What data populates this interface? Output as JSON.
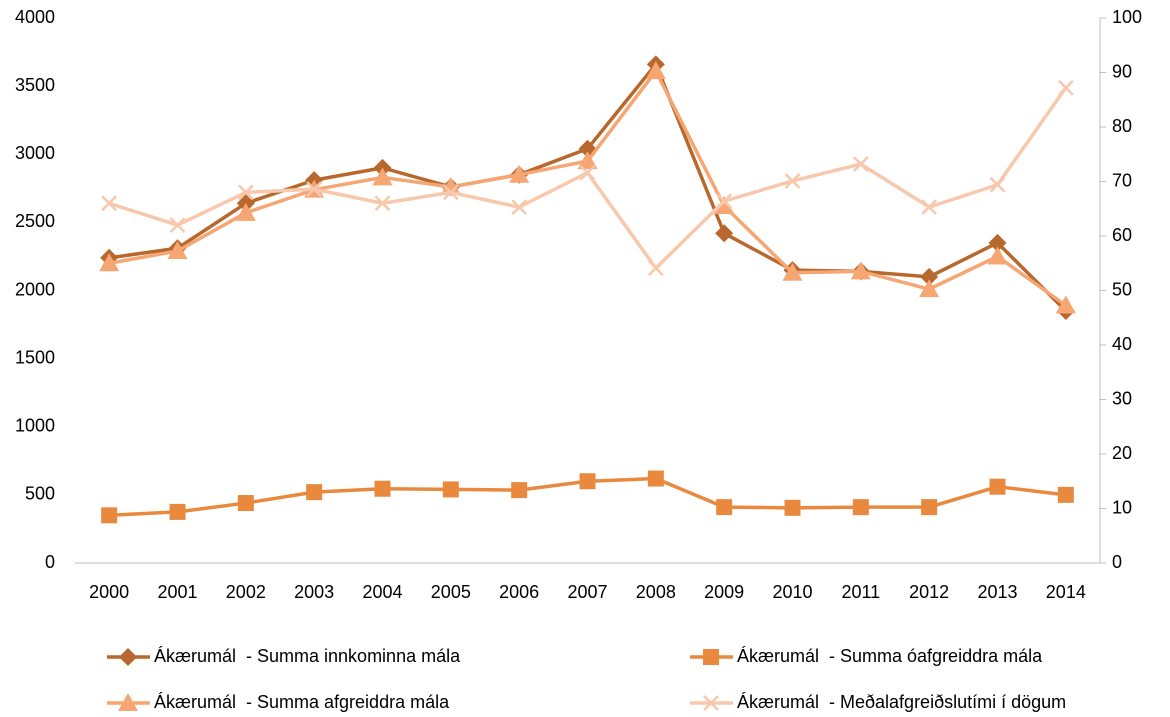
{
  "chart_data": {
    "type": "line",
    "categories": [
      "2000",
      "2001",
      "2002",
      "2003",
      "2004",
      "2005",
      "2006",
      "2007",
      "2008",
      "2009",
      "2010",
      "2011",
      "2012",
      "2013",
      "2014"
    ],
    "series": [
      {
        "name": "Ákærumál  - Summa innkominna mála",
        "color": "#b8682c",
        "marker": "diamond",
        "values": [
          2240,
          2310,
          2640,
          2810,
          2900,
          2760,
          2850,
          3040,
          3660,
          2420,
          2150,
          2140,
          2100,
          2350,
          1850
        ]
      },
      {
        "name": "Ákærumál  - Summa óafgreiddra mála",
        "color": "#e9893e",
        "marker": "square",
        "values": [
          350,
          375,
          440,
          520,
          545,
          540,
          535,
          600,
          620,
          410,
          405,
          410,
          410,
          560,
          500
        ]
      },
      {
        "name": "Ákærumál  - Summa afgreiddra mála",
        "color": "#f5a673",
        "marker": "triangle",
        "values": [
          2200,
          2290,
          2570,
          2740,
          2830,
          2760,
          2850,
          2950,
          3610,
          2620,
          2130,
          2140,
          2010,
          2250,
          1890
        ]
      },
      {
        "name": "Ákærumál  - Meðalafgreiðslutími í dögum",
        "color": "#f7c8ac",
        "marker": "x",
        "axis": "y2",
        "values": [
          66,
          62,
          68,
          68.6,
          66,
          68,
          65.3,
          71.6,
          54.1,
          66.4,
          70.1,
          73.2,
          65.3,
          69.4,
          87.2
        ]
      }
    ],
    "ylim": [
      0,
      4000
    ],
    "yticks": [
      0,
      500,
      1000,
      1500,
      2000,
      2500,
      3000,
      3500,
      4000
    ],
    "y2lim": [
      0,
      100
    ],
    "y2ticks": [
      0,
      10,
      20,
      30,
      40,
      50,
      60,
      70,
      80,
      90,
      100
    ],
    "grid": false,
    "legend": "bottom"
  }
}
